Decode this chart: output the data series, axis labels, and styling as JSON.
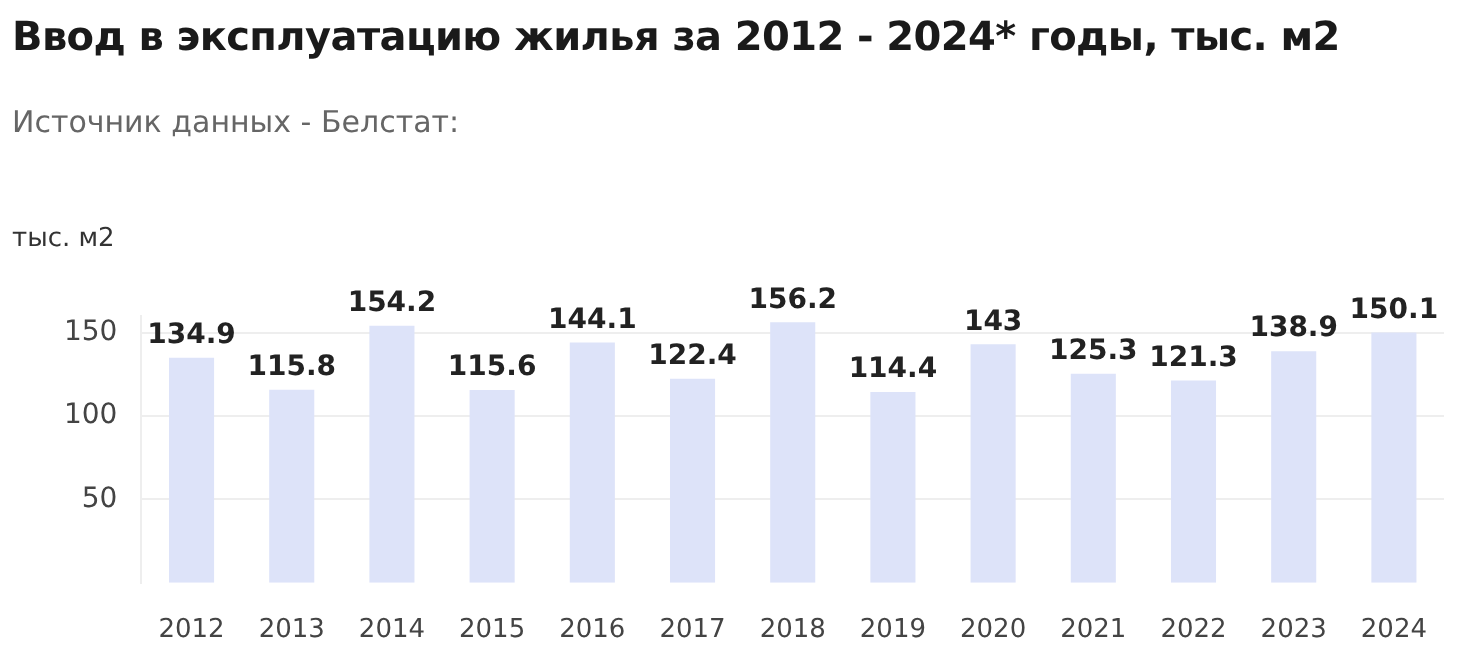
{
  "chart_data": {
    "type": "bar",
    "title": "Ввод в эксплуатацию жилья за 2012 - 2024* годы, тыс. м2",
    "subtitle": "Источник данных - Белстат:",
    "ylabel": "тыс. м2",
    "categories": [
      "2012",
      "2013",
      "2014",
      "2015",
      "2016",
      "2017",
      "2018",
      "2019",
      "2020",
      "2021",
      "2022",
      "2023",
      "2024"
    ],
    "values": [
      134.9,
      115.8,
      154.2,
      115.6,
      144.1,
      122.4,
      156.2,
      114.4,
      143,
      125.3,
      121.3,
      138.9,
      150.1
    ],
    "color": "#dde3f9",
    "ylim": [
      0,
      160
    ],
    "yticks": [
      50,
      100,
      150
    ],
    "grid": "y",
    "data_labels": true
  }
}
